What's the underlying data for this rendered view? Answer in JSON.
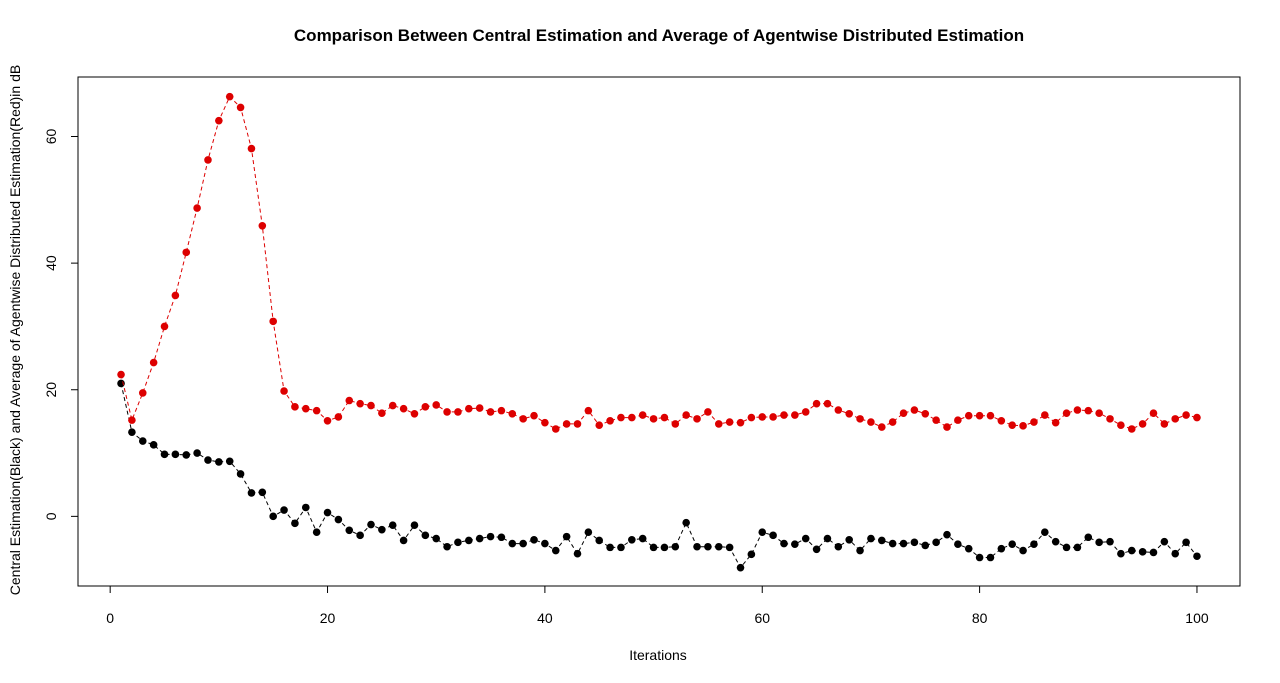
{
  "chart_data": {
    "type": "scatter",
    "title": "Comparison Between Central Estimation and Average of Agentwise Distributed Estimation",
    "x_label": "Iterations",
    "y_label": "Central Estimation(Black) and Average of Agentwise Distributed Estimation(Red)in dB",
    "x": [
      1,
      2,
      3,
      4,
      5,
      6,
      7,
      8,
      9,
      10,
      11,
      12,
      13,
      14,
      15,
      16,
      17,
      18,
      19,
      20,
      21,
      22,
      23,
      24,
      25,
      26,
      27,
      28,
      29,
      30,
      31,
      32,
      33,
      34,
      35,
      36,
      37,
      38,
      39,
      40,
      41,
      42,
      43,
      44,
      45,
      46,
      47,
      48,
      49,
      50,
      51,
      52,
      53,
      54,
      55,
      56,
      57,
      58,
      59,
      60,
      61,
      62,
      63,
      64,
      65,
      66,
      67,
      68,
      69,
      70,
      71,
      72,
      73,
      74,
      75,
      76,
      77,
      78,
      79,
      80,
      81,
      82,
      83,
      84,
      85,
      86,
      87,
      88,
      89,
      90,
      91,
      92,
      93,
      94,
      95,
      96,
      97,
      98,
      99,
      100
    ],
    "series": [
      {
        "color": "#000000",
        "values": [
          21,
          13.3,
          11.9,
          11.3,
          9.8,
          9.8,
          9.7,
          10,
          8.9,
          8.6,
          8.7,
          6.7,
          3.7,
          3.8,
          0,
          1,
          -1.1,
          1.4,
          -2.5,
          0.6,
          -0.5,
          -2.2,
          -3,
          -1.3,
          -2.1,
          -1.4,
          -3.8,
          -1.4,
          -3,
          -3.5,
          -4.8,
          -4.1,
          -3.8,
          -3.5,
          -3.2,
          -3.3,
          -4.3,
          -4.3,
          -3.7,
          -4.3,
          -5.4,
          -3.2,
          -5.9,
          -2.5,
          -3.8,
          -4.9,
          -4.9,
          -3.7,
          -3.5,
          -4.9,
          -4.9,
          -4.8,
          -1,
          -4.8,
          -4.8,
          -4.8,
          -4.9,
          -8.1,
          -6,
          -2.5,
          -3,
          -4.3,
          -4.4,
          -3.5,
          -5.2,
          -3.5,
          -4.8,
          -3.7,
          -5.4,
          -3.5,
          -3.8,
          -4.3,
          -4.3,
          -4.1,
          -4.6,
          -4.1,
          -2.9,
          -4.4,
          -5.1,
          -6.5,
          -6.5,
          -5.1,
          -4.4,
          -5.4,
          -4.4,
          -2.5,
          -4,
          -4.9,
          -4.9,
          -3.3,
          -4.1,
          -4,
          -5.9,
          -5.4,
          -5.6,
          -5.7,
          -4,
          -5.9,
          -4.1,
          -6.3
        ]
      },
      {
        "color": "#dd0000",
        "values": [
          22.4,
          15.2,
          19.5,
          24.3,
          30,
          34.9,
          41.7,
          48.7,
          56.3,
          62.5,
          66.3,
          64.6,
          58.1,
          45.9,
          30.8,
          19.8,
          17.3,
          17,
          16.7,
          15.1,
          15.7,
          18.3,
          17.8,
          17.5,
          16.3,
          17.5,
          17,
          16.2,
          17.3,
          17.6,
          16.5,
          16.5,
          17,
          17.1,
          16.5,
          16.7,
          16.2,
          15.4,
          15.9,
          14.8,
          13.8,
          14.6,
          14.6,
          16.7,
          14.4,
          15.1,
          15.6,
          15.6,
          16,
          15.4,
          15.6,
          14.6,
          16,
          15.4,
          16.5,
          14.6,
          14.9,
          14.8,
          15.6,
          15.7,
          15.7,
          16,
          16,
          16.5,
          17.8,
          17.8,
          16.8,
          16.2,
          15.4,
          14.9,
          14.1,
          14.9,
          16.3,
          16.8,
          16.2,
          15.2,
          14.1,
          15.2,
          15.9,
          15.9,
          15.9,
          15.1,
          14.4,
          14.3,
          14.9,
          16,
          14.8,
          16.3,
          16.8,
          16.7,
          16.3,
          15.4,
          14.4,
          13.8,
          14.6,
          16.3,
          14.6,
          15.4,
          16,
          15.6
        ]
      }
    ],
    "xlim": [
      -2.96,
      103.96
    ],
    "ylim": [
      -11,
      69.4
    ],
    "xticks": [
      0,
      20,
      40,
      60,
      80,
      100
    ],
    "yticks": [
      0,
      20,
      40,
      60
    ],
    "grid": false,
    "line_style": "dashed"
  }
}
